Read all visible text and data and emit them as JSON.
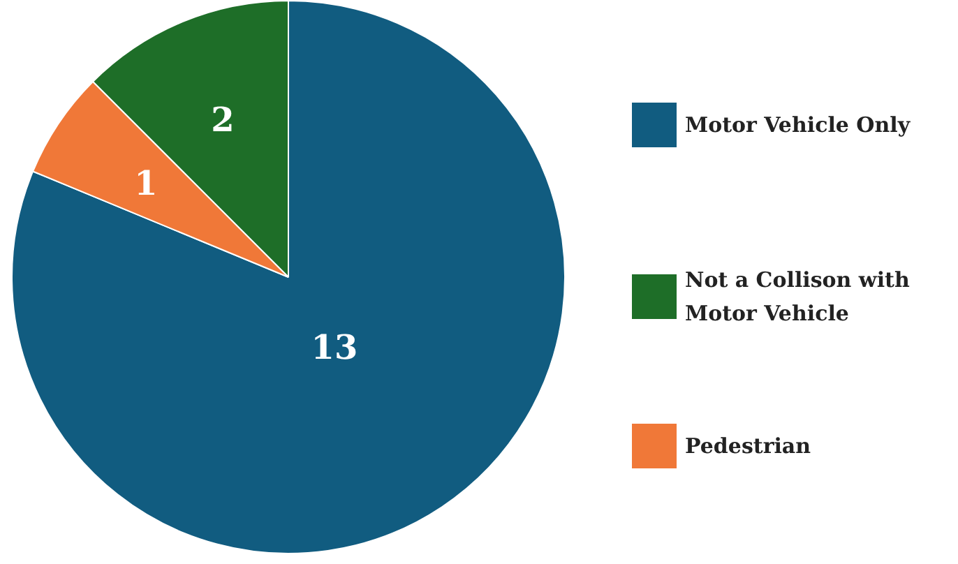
{
  "chart_data": {
    "type": "pie",
    "categories": [
      "Motor Vehicle Only",
      "Not a Collison with Motor Vehicle",
      "Pedestrian"
    ],
    "values": [
      13,
      2,
      1
    ],
    "colors": [
      "#115c80",
      "#1e6e28",
      "#f07838"
    ],
    "data_labels": true,
    "legend": "right"
  }
}
